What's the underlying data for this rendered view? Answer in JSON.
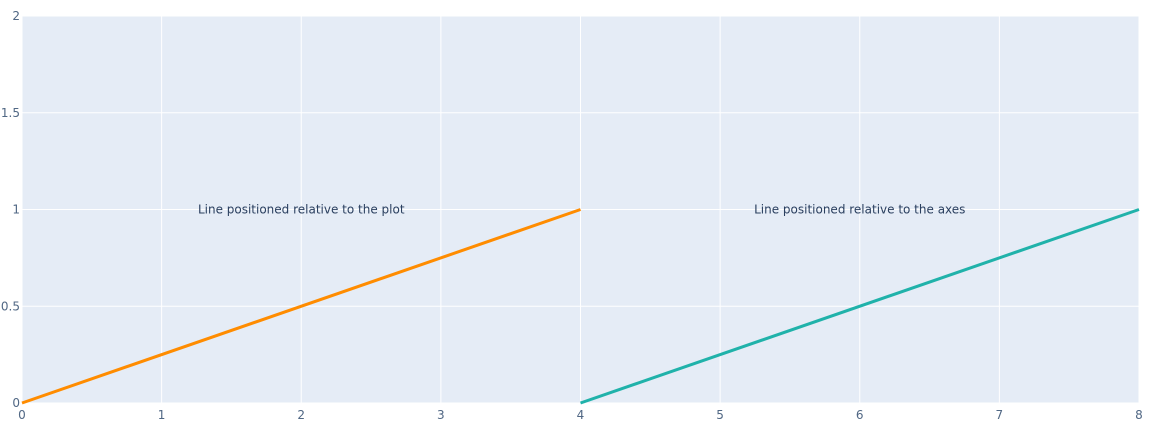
{
  "chart_data": {
    "type": "line",
    "x_range": [
      0,
      8
    ],
    "y_range": [
      0,
      2
    ],
    "x_ticks": [
      0,
      1,
      2,
      3,
      4,
      5,
      6,
      7,
      8
    ],
    "y_ticks": [
      0,
      0.5,
      1,
      1.5,
      2
    ],
    "x_tick_labels": [
      "0",
      "1",
      "2",
      "3",
      "4",
      "5",
      "6",
      "7",
      "8"
    ],
    "y_tick_labels": [
      "0",
      "0.5",
      "1",
      "1.5",
      "2"
    ],
    "grid": true,
    "plot_background": "#e5ecf6",
    "gridline_color": "#ffffff",
    "shapes": [
      {
        "name": "orange-line",
        "x0": 0,
        "y0": 0,
        "x1": 4,
        "y1": 1,
        "color": "#ff8c00"
      },
      {
        "name": "teal-line",
        "x0": 4,
        "y0": 0,
        "x1": 8,
        "y1": 1,
        "color": "#20b2aa"
      }
    ],
    "annotations": [
      {
        "name": "annotation-plot",
        "text": "Line positioned relative to the plot",
        "x": 2,
        "y": 1
      },
      {
        "name": "annotation-axes",
        "text": "Line positioned relative to the axes",
        "x": 6,
        "y": 1
      }
    ]
  }
}
